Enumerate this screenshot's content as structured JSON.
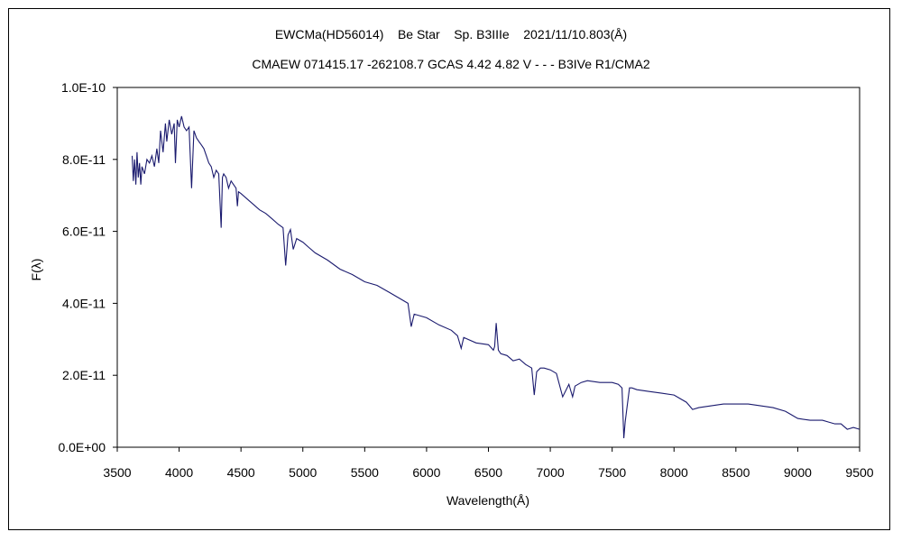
{
  "chart_data": {
    "type": "line",
    "title": "EWCMa(HD56014)    Be Star    Sp. B3IIIe    2021/11/10.803(Å)",
    "subtitle": "CMAEW 071415.17 -262108.7 GCAS 4.42 4.82 V - - - B3IVe R1/CMA2",
    "xlabel": "Wavelength(Å)",
    "ylabel": "F(λ)",
    "xlim": [
      3500,
      9500
    ],
    "ylim": [
      0,
      1e-10
    ],
    "x_ticks": [
      3500,
      4000,
      4500,
      5000,
      5500,
      6000,
      6500,
      7000,
      7500,
      8000,
      8500,
      9000,
      9500
    ],
    "x_tick_labels": [
      "3500",
      "4000",
      "4500",
      "5000",
      "5500",
      "6000",
      "6500",
      "7000",
      "7500",
      "8000",
      "8500",
      "9000",
      "9500"
    ],
    "y_ticks": [
      0,
      2e-11,
      4e-11,
      6e-11,
      8e-11,
      1e-10
    ],
    "y_tick_labels": [
      "0.0E+00",
      "2.0E-11",
      "4.0E-11",
      "6.0E-11",
      "8.0E-11",
      "1.0E-10"
    ],
    "grid": false,
    "line_color": "#1a1a6e",
    "series": [
      {
        "x": [
          3620,
          3630,
          3640,
          3650,
          3660,
          3670,
          3680,
          3690,
          3700,
          3720,
          3740,
          3760,
          3780,
          3800,
          3820,
          3835,
          3850,
          3870,
          3889,
          3900,
          3920,
          3940,
          3960,
          3970,
          3985,
          4000,
          4020,
          4040,
          4060,
          4080,
          4101,
          4120,
          4140,
          4160,
          4180,
          4200,
          4220,
          4240,
          4260,
          4280,
          4300,
          4320,
          4340,
          4350,
          4360,
          4380,
          4400,
          4420,
          4440,
          4460,
          4471,
          4480,
          4500,
          4550,
          4600,
          4650,
          4700,
          4750,
          4800,
          4840,
          4861,
          4880,
          4900,
          4922,
          4950,
          5000,
          5050,
          5100,
          5200,
          5300,
          5400,
          5500,
          5600,
          5700,
          5800,
          5850,
          5876,
          5900,
          5950,
          6000,
          6100,
          6200,
          6250,
          6280,
          6300,
          6400,
          6500,
          6540,
          6550,
          6563,
          6580,
          6600,
          6650,
          6700,
          6750,
          6800,
          6850,
          6870,
          6890,
          6920,
          6950,
          7000,
          7050,
          7100,
          7150,
          7180,
          7200,
          7250,
          7300,
          7400,
          7500,
          7550,
          7580,
          7594,
          7605,
          7620,
          7640,
          7660,
          7700,
          7800,
          7900,
          8000,
          8050,
          8100,
          8150,
          8200,
          8300,
          8400,
          8500,
          8600,
          8700,
          8800,
          8900,
          8950,
          9000,
          9100,
          9200,
          9250,
          9300,
          9350,
          9400,
          9450,
          9500
        ],
        "y": [
          8.1e-11,
          7.4e-11,
          8e-11,
          7.3e-11,
          8.2e-11,
          7.5e-11,
          7.9e-11,
          7.3e-11,
          7.8e-11,
          7.6e-11,
          8e-11,
          7.9e-11,
          8.1e-11,
          7.8e-11,
          8.3e-11,
          7.9e-11,
          8.8e-11,
          8.2e-11,
          9e-11,
          8.5e-11,
          9.1e-11,
          8.7e-11,
          9e-11,
          7.9e-11,
          9.1e-11,
          8.9e-11,
          9.2e-11,
          8.9e-11,
          8.8e-11,
          8.9e-11,
          7.2e-11,
          8.8e-11,
          8.6e-11,
          8.5e-11,
          8.4e-11,
          8.3e-11,
          8.1e-11,
          7.9e-11,
          7.8e-11,
          7.5e-11,
          7.7e-11,
          7.6e-11,
          6.1e-11,
          7.5e-11,
          7.6e-11,
          7.5e-11,
          7.2e-11,
          7.4e-11,
          7.3e-11,
          7.2e-11,
          6.7e-11,
          7.1e-11,
          7.05e-11,
          6.9e-11,
          6.75e-11,
          6.6e-11,
          6.5e-11,
          6.35e-11,
          6.2e-11,
          6.1e-11,
          5.05e-11,
          5.9e-11,
          6.05e-11,
          5.5e-11,
          5.8e-11,
          5.7e-11,
          5.55e-11,
          5.4e-11,
          5.2e-11,
          4.95e-11,
          4.8e-11,
          4.6e-11,
          4.5e-11,
          4.3e-11,
          4.1e-11,
          4e-11,
          3.35e-11,
          3.7e-11,
          3.65e-11,
          3.6e-11,
          3.4e-11,
          3.25e-11,
          3.1e-11,
          2.75e-11,
          3.05e-11,
          2.9e-11,
          2.85e-11,
          2.7e-11,
          2.8e-11,
          3.45e-11,
          2.7e-11,
          2.6e-11,
          2.55e-11,
          2.4e-11,
          2.45e-11,
          2.3e-11,
          2.2e-11,
          1.45e-11,
          2.1e-11,
          2.2e-11,
          2.2e-11,
          2.15e-11,
          2.05e-11,
          1.4e-11,
          1.75e-11,
          1.4e-11,
          1.7e-11,
          1.8e-11,
          1.85e-11,
          1.8e-11,
          1.8e-11,
          1.75e-11,
          1.65e-11,
          2.5e-12,
          7e-12,
          1.1e-11,
          1.65e-11,
          1.65e-11,
          1.6e-11,
          1.55e-11,
          1.5e-11,
          1.45e-11,
          1.35e-11,
          1.25e-11,
          1.05e-11,
          1.1e-11,
          1.15e-11,
          1.2e-11,
          1.2e-11,
          1.2e-11,
          1.15e-11,
          1.1e-11,
          1e-11,
          9e-12,
          8e-12,
          7.5e-12,
          7.5e-12,
          7e-12,
          6.5e-12,
          6.5e-12,
          5e-12,
          5.5e-12,
          5e-12
        ]
      }
    ]
  }
}
